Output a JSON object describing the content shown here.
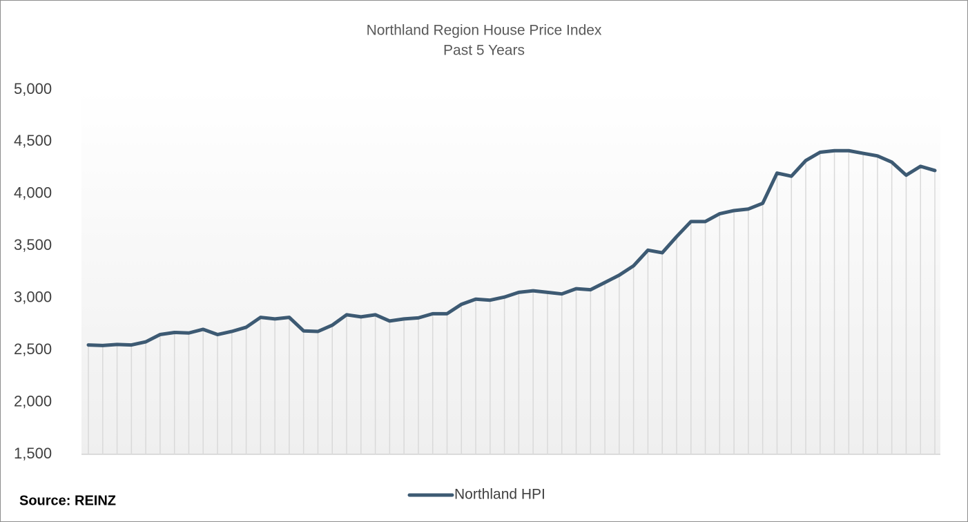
{
  "chart_data": {
    "type": "line",
    "title": "Northland Region House Price Index",
    "subtitle": "Past 5 Years",
    "source": "Source: REINZ",
    "series": [
      {
        "name": "Northland HPI",
        "color": "#3d5a73",
        "values": [
          2550,
          2545,
          2555,
          2550,
          2580,
          2650,
          2670,
          2665,
          2700,
          2650,
          2680,
          2720,
          2815,
          2800,
          2815,
          2685,
          2680,
          2740,
          2840,
          2820,
          2840,
          2780,
          2800,
          2810,
          2850,
          2850,
          2940,
          2990,
          2980,
          3010,
          3055,
          3070,
          3055,
          3040,
          3090,
          3080,
          3150,
          3220,
          3310,
          3460,
          3435,
          3590,
          3735,
          3735,
          3810,
          3840,
          3855,
          3910,
          4200,
          4170,
          4320,
          4400,
          4415,
          4415,
          4390,
          4365,
          4305,
          4180,
          4265,
          4225
        ]
      }
    ],
    "ylim": [
      1500,
      5000
    ],
    "yticks": [
      {
        "value": 1500,
        "label": "1,500"
      },
      {
        "value": 2000,
        "label": "2,000"
      },
      {
        "value": 2500,
        "label": "2,500"
      },
      {
        "value": 3000,
        "label": "3,000"
      },
      {
        "value": 3500,
        "label": "3,500"
      },
      {
        "value": 4000,
        "label": "4,000"
      },
      {
        "value": 4500,
        "label": "4,500"
      },
      {
        "value": 5000,
        "label": "5,000"
      }
    ],
    "drop_lines": true,
    "legend": "bottom"
  }
}
